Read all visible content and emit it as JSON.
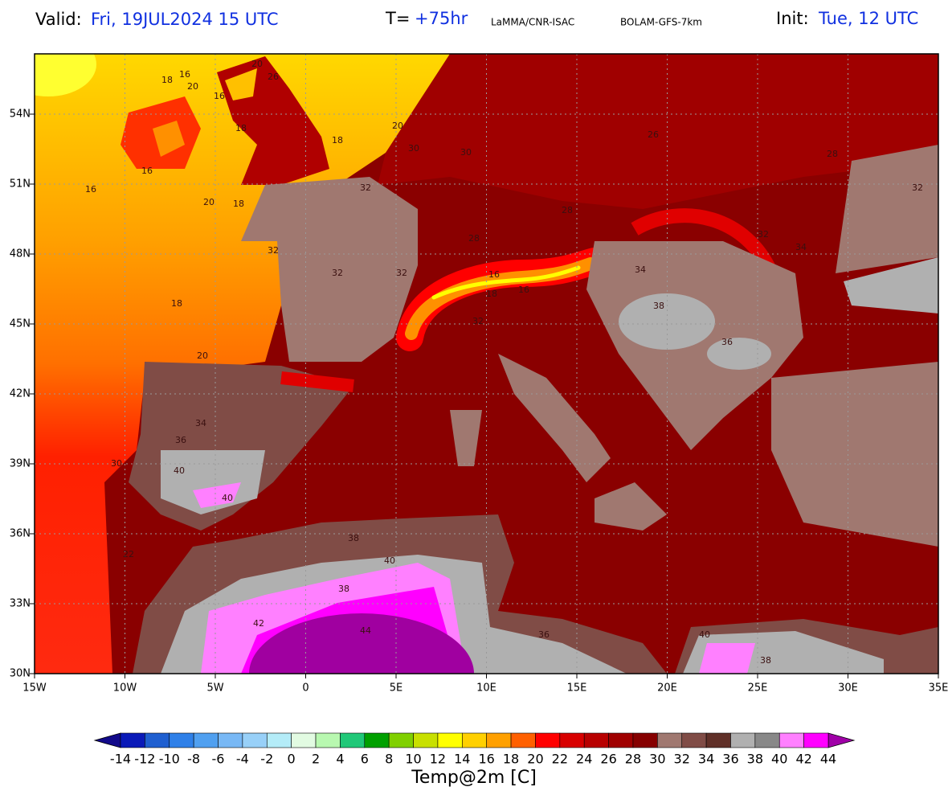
{
  "header": {
    "valid_label": "Valid:",
    "valid_value": "Fri, 19JUL2024  15 UTC",
    "t_label": "T=",
    "t_value": "+75hr",
    "source": "LaMMA/CNR-ISAC",
    "model": "BOLAM-GFS-7km",
    "init_label": "Init:",
    "init_value": "Tue, 12 UTC"
  },
  "map": {
    "lat_labels": [
      "54N",
      "51N",
      "48N",
      "45N",
      "42N",
      "39N",
      "36N",
      "33N",
      "30N"
    ],
    "lon_labels": [
      "15W",
      "10W",
      "5W",
      "0",
      "5E",
      "10E",
      "15E",
      "20E",
      "25E",
      "30E",
      "35E"
    ],
    "contour_labels": [
      "18",
      "16",
      "20",
      "16",
      "20",
      "26",
      "18",
      "18",
      "16",
      "16",
      "20",
      "18",
      "20",
      "30",
      "30",
      "32",
      "32",
      "32",
      "32",
      "18",
      "20",
      "30",
      "22",
      "34",
      "36",
      "40",
      "40",
      "38",
      "40",
      "38",
      "42",
      "44",
      "36",
      "40",
      "38",
      "32",
      "34",
      "38",
      "36",
      "32",
      "34",
      "32",
      "16",
      "18",
      "16",
      "28",
      "28",
      "26",
      "28"
    ]
  },
  "colorbar": {
    "title": "Temp@2m [C]",
    "labels": [
      -14,
      -12,
      -10,
      -8,
      -6,
      -4,
      -2,
      0,
      2,
      4,
      6,
      8,
      10,
      12,
      14,
      16,
      18,
      20,
      22,
      24,
      26,
      28,
      30,
      32,
      34,
      36,
      38,
      40,
      42,
      44
    ],
    "low_color": "#120a8a",
    "high_color": "#a000a8",
    "colors": [
      "#0a1ab8",
      "#1f5fd0",
      "#2f80e8",
      "#50a0f0",
      "#78b8f5",
      "#98d0f8",
      "#b4ecf8",
      "#e2fbe2",
      "#b8f8b0",
      "#20c878",
      "#00a000",
      "#80d000",
      "#c8e000",
      "#ffff00",
      "#ffd000",
      "#ffa000",
      "#ff6000",
      "#ff0000",
      "#d80000",
      "#b80000",
      "#a00000",
      "#860000",
      "#a07870",
      "#804c46",
      "#603028",
      "#b0b0b0",
      "#888888",
      "#ff80ff",
      "#ff00ff"
    ]
  }
}
